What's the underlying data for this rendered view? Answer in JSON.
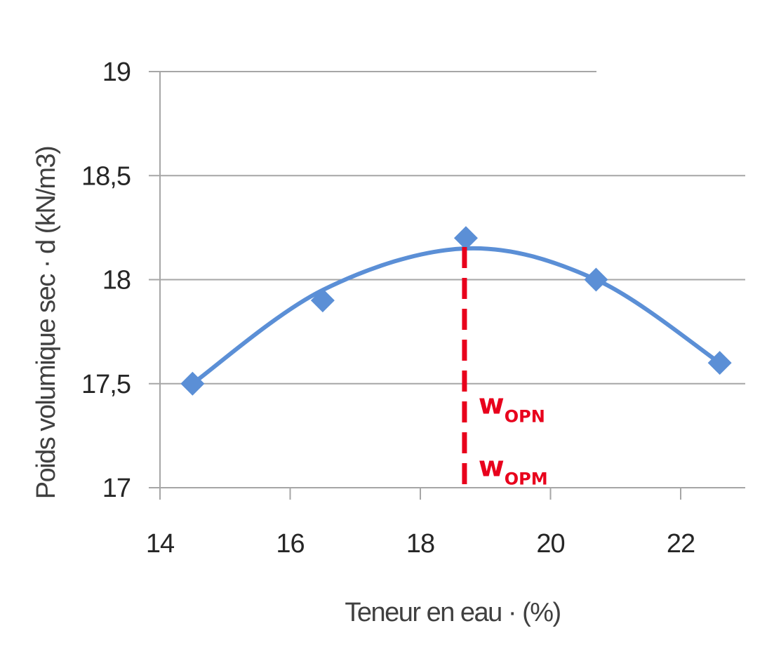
{
  "chart_data": {
    "type": "scatter",
    "title": "",
    "xlabel": "Teneur en eau  ·   (%)",
    "ylabel": "Poids volumique sec  ·  d  (kN/m3)",
    "xlim": [
      14,
      23.5
    ],
    "ylim": [
      17,
      19
    ],
    "x_ticks": [
      "14",
      "16",
      "18",
      "20",
      "22"
    ],
    "y_ticks": [
      "17",
      "17,5",
      "18",
      "18,5",
      "19"
    ],
    "grid": "horizontal",
    "legend": "none",
    "series": [
      {
        "points": [
          {
            "x": 14.5,
            "y": 17.5
          },
          {
            "x": 16.5,
            "y": 17.9
          },
          {
            "x": 18.7,
            "y": 18.2
          },
          {
            "x": 20.7,
            "y": 18.0
          },
          {
            "x": 22.6,
            "y": 17.6
          }
        ],
        "color": "#5b8fd6",
        "marker": "diamond"
      }
    ],
    "trendline": {
      "type": "polynomial-2",
      "color": "#5b8fd6",
      "points": [
        {
          "x": 14.5,
          "y": 17.5
        },
        {
          "x": 16.5,
          "y": 17.95
        },
        {
          "x": 18.7,
          "y": 18.15
        },
        {
          "x": 20.7,
          "y": 18.0
        },
        {
          "x": 22.6,
          "y": 17.6
        }
      ]
    },
    "annotations": [
      {
        "type": "vertical-dashed-line",
        "x": 18.7,
        "y_from": 17,
        "y_to": 18.15,
        "color": "#e8001c"
      },
      {
        "text_main": "w",
        "text_sub": "OPN",
        "x": 19.0,
        "y": 17.45,
        "color": "#e8001c"
      },
      {
        "text_main": "w",
        "text_sub": "OPM",
        "x": 19.0,
        "y": 17.15,
        "color": "#e8001c"
      }
    ]
  }
}
